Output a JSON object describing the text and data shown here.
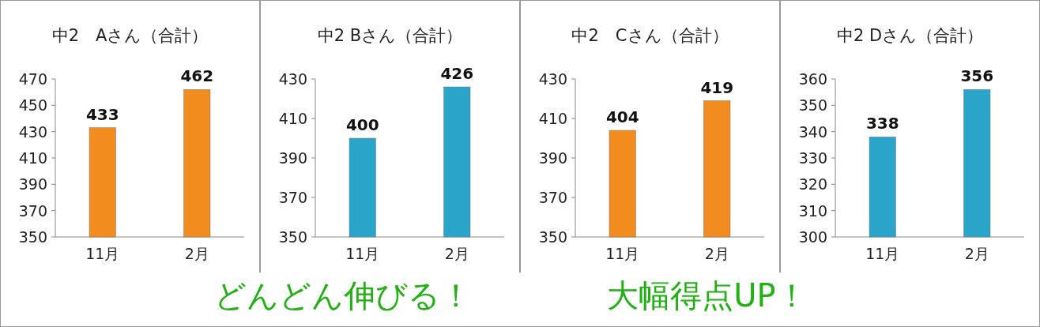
{
  "chart_data": [
    {
      "type": "bar",
      "title": "中2　Aさん（合計）",
      "categories": [
        "11月",
        "2月"
      ],
      "values": [
        433,
        462
      ],
      "color": "#f28c1e",
      "ylim": [
        350,
        470
      ],
      "yticks": [
        350,
        370,
        390,
        410,
        430,
        450,
        470
      ],
      "data_labels": true
    },
    {
      "type": "bar",
      "title": "中2 Bさん（合計）",
      "categories": [
        "11月",
        "2月"
      ],
      "values": [
        400,
        426
      ],
      "color": "#2aa5c9",
      "ylim": [
        350,
        430
      ],
      "yticks": [
        350,
        370,
        390,
        410,
        430
      ],
      "data_labels": true
    },
    {
      "type": "bar",
      "title": "中2　Cさん（合計）",
      "categories": [
        "11月",
        "2月"
      ],
      "values": [
        404,
        419
      ],
      "color": "#f28c1e",
      "ylim": [
        350,
        430
      ],
      "yticks": [
        350,
        370,
        390,
        410,
        430
      ],
      "data_labels": true
    },
    {
      "type": "bar",
      "title": "中2 Dさん（合計）",
      "categories": [
        "11月",
        "2月"
      ],
      "values": [
        338,
        356
      ],
      "color": "#2aa5c9",
      "ylim": [
        300,
        360
      ],
      "yticks": [
        300,
        310,
        320,
        330,
        340,
        350,
        360
      ],
      "data_labels": true
    },
    {
      "type": "other",
      "annotations": [
        "どんどん伸びる！",
        "大幅得点UP！"
      ]
    }
  ]
}
